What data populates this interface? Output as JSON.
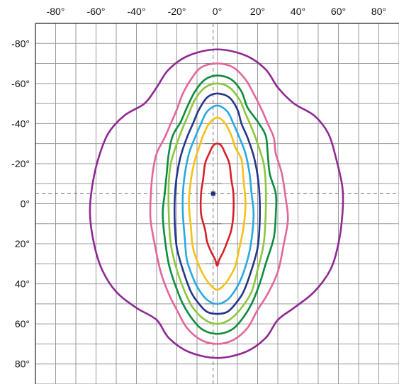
{
  "chart_data": {
    "type": "line",
    "title": "",
    "xlabel": "",
    "ylabel": "",
    "xlim": [
      -90,
      90
    ],
    "ylim": [
      -90,
      90
    ],
    "y_axis_inverted": true,
    "grid": true,
    "x_ticks": [
      -80,
      -60,
      -40,
      -20,
      0,
      20,
      40,
      60,
      80
    ],
    "x_tick_labels": [
      "-80°",
      "-60°",
      "-40°",
      "-20°",
      "0°",
      "20°",
      "40°",
      "60°",
      "80°"
    ],
    "y_ticks": [
      -80,
      -60,
      -40,
      -20,
      0,
      20,
      40,
      60,
      80
    ],
    "y_tick_labels": [
      "-80°",
      "-60°",
      "-40°",
      "-20°",
      "0°",
      "20°",
      "40°",
      "60°",
      "80°"
    ],
    "center_marker": {
      "x": -2,
      "y": -5,
      "color": "#1f2f7a"
    },
    "series": [
      {
        "color": "#8e2a92",
        "points": [
          [
            0,
            -77
          ],
          [
            14,
            -74
          ],
          [
            24,
            -67
          ],
          [
            30,
            -58
          ],
          [
            38,
            -50
          ],
          [
            48,
            -44
          ],
          [
            55,
            -35
          ],
          [
            59,
            -22
          ],
          [
            62,
            -8
          ],
          [
            62,
            5
          ],
          [
            60,
            20
          ],
          [
            56,
            33
          ],
          [
            48,
            44
          ],
          [
            38,
            52
          ],
          [
            30,
            58
          ],
          [
            24,
            67
          ],
          [
            14,
            74
          ],
          [
            0,
            77
          ],
          [
            -14,
            74
          ],
          [
            -24,
            67
          ],
          [
            -30,
            58
          ],
          [
            -40,
            52
          ],
          [
            -50,
            44
          ],
          [
            -57,
            33
          ],
          [
            -61,
            20
          ],
          [
            -63,
            5
          ],
          [
            -62,
            -8
          ],
          [
            -59,
            -22
          ],
          [
            -54,
            -35
          ],
          [
            -46,
            -44
          ],
          [
            -36,
            -50
          ],
          [
            -30,
            -58
          ],
          [
            -24,
            -67
          ],
          [
            -14,
            -74
          ]
        ]
      },
      {
        "color": "#e2669a",
        "points": [
          [
            0,
            -70
          ],
          [
            8,
            -68
          ],
          [
            14,
            -62
          ],
          [
            18,
            -55
          ],
          [
            22,
            -47
          ],
          [
            25,
            -40
          ],
          [
            28,
            -33
          ],
          [
            29,
            -25
          ],
          [
            32,
            -15
          ],
          [
            34,
            -2
          ],
          [
            35,
            8
          ],
          [
            33,
            20
          ],
          [
            30,
            34
          ],
          [
            25,
            45
          ],
          [
            20,
            53
          ],
          [
            15,
            62
          ],
          [
            8,
            68
          ],
          [
            0,
            70
          ],
          [
            -8,
            68
          ],
          [
            -15,
            62
          ],
          [
            -20,
            53
          ],
          [
            -24,
            45
          ],
          [
            -28,
            34
          ],
          [
            -31,
            20
          ],
          [
            -33,
            8
          ],
          [
            -33,
            -2
          ],
          [
            -32,
            -15
          ],
          [
            -30,
            -25
          ],
          [
            -26,
            -33
          ],
          [
            -23,
            -40
          ],
          [
            -20,
            -47
          ],
          [
            -17,
            -55
          ],
          [
            -13,
            -62
          ],
          [
            -8,
            -68
          ]
        ]
      },
      {
        "color": "#0d8c3e",
        "points": [
          [
            0,
            -64
          ],
          [
            7,
            -62
          ],
          [
            12,
            -56
          ],
          [
            15,
            -48
          ],
          [
            20,
            -41
          ],
          [
            24,
            -34
          ],
          [
            25,
            -25
          ],
          [
            26,
            -15
          ],
          [
            29,
            -5
          ],
          [
            29,
            5
          ],
          [
            28,
            17
          ],
          [
            24,
            30
          ],
          [
            21,
            40
          ],
          [
            17,
            50
          ],
          [
            12,
            58
          ],
          [
            7,
            63
          ],
          [
            0,
            65
          ],
          [
            -7,
            63
          ],
          [
            -12,
            58
          ],
          [
            -17,
            50
          ],
          [
            -21,
            40
          ],
          [
            -24,
            30
          ],
          [
            -26,
            17
          ],
          [
            -27,
            5
          ],
          [
            -26,
            -5
          ],
          [
            -25,
            -15
          ],
          [
            -24,
            -25
          ],
          [
            -22,
            -34
          ],
          [
            -18,
            -41
          ],
          [
            -15,
            -48
          ],
          [
            -11,
            -56
          ],
          [
            -6,
            -62
          ]
        ]
      },
      {
        "color": "#8cc63e",
        "points": [
          [
            0,
            -60
          ],
          [
            6,
            -58
          ],
          [
            11,
            -52
          ],
          [
            14,
            -45
          ],
          [
            17,
            -38
          ],
          [
            20,
            -30
          ],
          [
            23,
            -20
          ],
          [
            24,
            -10
          ],
          [
            24,
            5
          ],
          [
            23,
            20
          ],
          [
            20,
            33
          ],
          [
            17,
            44
          ],
          [
            12,
            52
          ],
          [
            6,
            58
          ],
          [
            0,
            60
          ],
          [
            -6,
            58
          ],
          [
            -12,
            52
          ],
          [
            -16,
            44
          ],
          [
            -20,
            33
          ],
          [
            -23,
            20
          ],
          [
            -24,
            5
          ],
          [
            -24,
            -10
          ],
          [
            -23,
            -20
          ],
          [
            -20,
            -30
          ],
          [
            -17,
            -38
          ],
          [
            -14,
            -45
          ],
          [
            -11,
            -52
          ],
          [
            -6,
            -58
          ]
        ]
      },
      {
        "color": "#24368a",
        "points": [
          [
            0,
            -55
          ],
          [
            6,
            -53
          ],
          [
            10,
            -47
          ],
          [
            12,
            -40
          ],
          [
            15,
            -33
          ],
          [
            18,
            -24
          ],
          [
            20,
            -14
          ],
          [
            21,
            -3
          ],
          [
            21,
            10
          ],
          [
            20,
            22
          ],
          [
            17,
            33
          ],
          [
            13,
            44
          ],
          [
            9,
            50
          ],
          [
            5,
            54
          ],
          [
            0,
            55
          ],
          [
            -5,
            54
          ],
          [
            -9,
            50
          ],
          [
            -13,
            44
          ],
          [
            -17,
            33
          ],
          [
            -20,
            22
          ],
          [
            -21,
            10
          ],
          [
            -21,
            -3
          ],
          [
            -20,
            -14
          ],
          [
            -18,
            -24
          ],
          [
            -15,
            -33
          ],
          [
            -12,
            -40
          ],
          [
            -9,
            -47
          ],
          [
            -5,
            -53
          ]
        ]
      },
      {
        "color": "#29a8e0",
        "points": [
          [
            0,
            -49
          ],
          [
            5,
            -46
          ],
          [
            8,
            -40
          ],
          [
            11,
            -33
          ],
          [
            14,
            -25
          ],
          [
            16,
            -15
          ],
          [
            17,
            -5
          ],
          [
            18,
            5
          ],
          [
            17,
            18
          ],
          [
            15,
            28
          ],
          [
            12,
            37
          ],
          [
            9,
            43
          ],
          [
            5,
            48
          ],
          [
            0,
            50
          ],
          [
            -5,
            48
          ],
          [
            -9,
            43
          ],
          [
            -12,
            37
          ],
          [
            -15,
            28
          ],
          [
            -16,
            18
          ],
          [
            -17,
            5
          ],
          [
            -17,
            -5
          ],
          [
            -16,
            -15
          ],
          [
            -14,
            -25
          ],
          [
            -11,
            -33
          ],
          [
            -8,
            -40
          ],
          [
            -5,
            -46
          ]
        ]
      },
      {
        "color": "#f5c116",
        "points": [
          [
            0,
            -43
          ],
          [
            4,
            -40
          ],
          [
            7,
            -34
          ],
          [
            9,
            -28
          ],
          [
            12,
            -22
          ],
          [
            13,
            -12
          ],
          [
            14,
            0
          ],
          [
            13,
            12
          ],
          [
            11,
            22
          ],
          [
            9,
            31
          ],
          [
            6,
            37
          ],
          [
            3,
            41
          ],
          [
            0,
            43
          ],
          [
            -3,
            41
          ],
          [
            -6,
            37
          ],
          [
            -9,
            31
          ],
          [
            -12,
            22
          ],
          [
            -13,
            12
          ],
          [
            -14,
            0
          ],
          [
            -13,
            -12
          ],
          [
            -11,
            -22
          ],
          [
            -9,
            -28
          ],
          [
            -7,
            -34
          ],
          [
            -4,
            -40
          ]
        ]
      },
      {
        "color": "#d7202a",
        "points": [
          [
            0,
            -30
          ],
          [
            2,
            -29
          ],
          [
            4,
            -25
          ],
          [
            6,
            -20
          ],
          [
            7,
            -12
          ],
          [
            8,
            -5
          ],
          [
            8,
            5
          ],
          [
            7,
            13
          ],
          [
            5,
            19
          ],
          [
            3,
            24
          ],
          [
            1,
            28
          ],
          [
            0,
            31
          ],
          [
            -1,
            28
          ],
          [
            -3,
            24
          ],
          [
            -5,
            19
          ],
          [
            -6,
            13
          ],
          [
            -8,
            5
          ],
          [
            -8,
            -5
          ],
          [
            -7,
            -12
          ],
          [
            -6,
            -20
          ],
          [
            -4,
            -25
          ],
          [
            -2,
            -29
          ]
        ]
      }
    ]
  }
}
